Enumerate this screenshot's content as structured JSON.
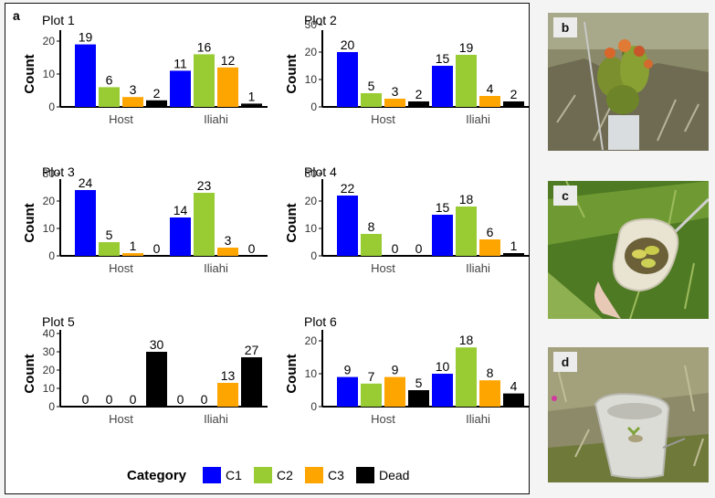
{
  "panel_label": "a",
  "legend": {
    "title": "Category",
    "items": [
      {
        "label": "C1",
        "color": "#0000ff"
      },
      {
        "label": "C2",
        "color": "#99cc33"
      },
      {
        "label": "C3",
        "color": "#ffa500"
      },
      {
        "label": "Dead",
        "color": "#000000"
      }
    ]
  },
  "photos": [
    {
      "label": "b",
      "subject": "shrub with orange-red leaf tips and a white tree guard"
    },
    {
      "label": "c",
      "subject": "small seedling inside an open white bag, held by hand"
    },
    {
      "label": "d",
      "subject": "seedling inside a white bag on grassland"
    }
  ],
  "chart_data": [
    {
      "type": "bar",
      "title": "Plot 1",
      "ylabel": "Count",
      "categories": [
        "Host",
        "Iliahi"
      ],
      "ylim": [
        0,
        25
      ],
      "yticks": [
        0,
        10,
        20
      ],
      "series": [
        {
          "name": "C1",
          "values": [
            19,
            11
          ]
        },
        {
          "name": "C2",
          "values": [
            6,
            16
          ]
        },
        {
          "name": "C3",
          "values": [
            3,
            12
          ]
        },
        {
          "name": "Dead",
          "values": [
            2,
            1
          ]
        }
      ]
    },
    {
      "type": "bar",
      "title": "Plot 2",
      "ylabel": "Count",
      "categories": [
        "Host",
        "Iliahi"
      ],
      "ylim": [
        0,
        30
      ],
      "yticks": [
        0,
        10,
        20,
        30
      ],
      "series": [
        {
          "name": "C1",
          "values": [
            20,
            15
          ]
        },
        {
          "name": "C2",
          "values": [
            5,
            19
          ]
        },
        {
          "name": "C3",
          "values": [
            3,
            4
          ]
        },
        {
          "name": "Dead",
          "values": [
            2,
            2
          ]
        }
      ]
    },
    {
      "type": "bar",
      "title": "Plot 3",
      "ylabel": "Count",
      "categories": [
        "Host",
        "Iliahi"
      ],
      "ylim": [
        0,
        30
      ],
      "yticks": [
        0,
        10,
        20,
        30
      ],
      "series": [
        {
          "name": "C1",
          "values": [
            24,
            14
          ]
        },
        {
          "name": "C2",
          "values": [
            5,
            23
          ]
        },
        {
          "name": "C3",
          "values": [
            1,
            3
          ]
        },
        {
          "name": "Dead",
          "values": [
            0,
            0
          ]
        }
      ]
    },
    {
      "type": "bar",
      "title": "Plot 4",
      "ylabel": "Count",
      "categories": [
        "Host",
        "Iliahi"
      ],
      "ylim": [
        0,
        30
      ],
      "yticks": [
        0,
        10,
        20,
        30
      ],
      "series": [
        {
          "name": "C1",
          "values": [
            22,
            15
          ]
        },
        {
          "name": "C2",
          "values": [
            8,
            18
          ]
        },
        {
          "name": "C3",
          "values": [
            0,
            6
          ]
        },
        {
          "name": "Dead",
          "values": [
            0,
            1
          ]
        }
      ]
    },
    {
      "type": "bar",
      "title": "Plot 5",
      "ylabel": "Count",
      "categories": [
        "Host",
        "Iliahi"
      ],
      "ylim": [
        0,
        45
      ],
      "yticks": [
        0,
        10,
        20,
        30,
        40
      ],
      "series": [
        {
          "name": "C1",
          "values": [
            0,
            0
          ]
        },
        {
          "name": "C2",
          "values": [
            0,
            0
          ]
        },
        {
          "name": "C3",
          "values": [
            0,
            13
          ]
        },
        {
          "name": "Dead",
          "values": [
            30,
            27
          ]
        }
      ]
    },
    {
      "type": "bar",
      "title": "Plot 6",
      "ylabel": "Count",
      "categories": [
        "Host",
        "Iliahi"
      ],
      "ylim": [
        0,
        25
      ],
      "yticks": [
        0,
        10,
        20
      ],
      "series": [
        {
          "name": "C1",
          "values": [
            9,
            10
          ]
        },
        {
          "name": "C2",
          "values": [
            7,
            18
          ]
        },
        {
          "name": "C3",
          "values": [
            9,
            8
          ]
        },
        {
          "name": "Dead",
          "values": [
            5,
            4
          ]
        }
      ]
    }
  ]
}
